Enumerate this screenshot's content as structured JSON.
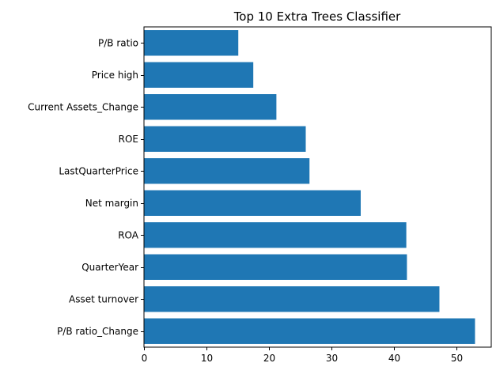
{
  "chart_data": {
    "type": "bar",
    "orientation": "horizontal",
    "title": "Top 10 Extra Trees Classifier",
    "xlabel": "",
    "ylabel": "",
    "categories": [
      "P/B ratio",
      "Price high",
      "Current Assets_Change",
      "ROE",
      "LastQuarterPrice",
      "Net margin",
      "ROA",
      "QuarterYear",
      "Asset turnover",
      "P/B ratio_Change"
    ],
    "values": [
      15.1,
      17.5,
      21.2,
      25.9,
      26.5,
      34.7,
      42.0,
      42.1,
      47.3,
      53.0
    ],
    "xlim": [
      0,
      55.6
    ],
    "xticks": [
      0,
      10,
      20,
      30,
      40,
      50
    ],
    "bar_color": "#1f77b4",
    "grid": false,
    "legend": "none"
  }
}
